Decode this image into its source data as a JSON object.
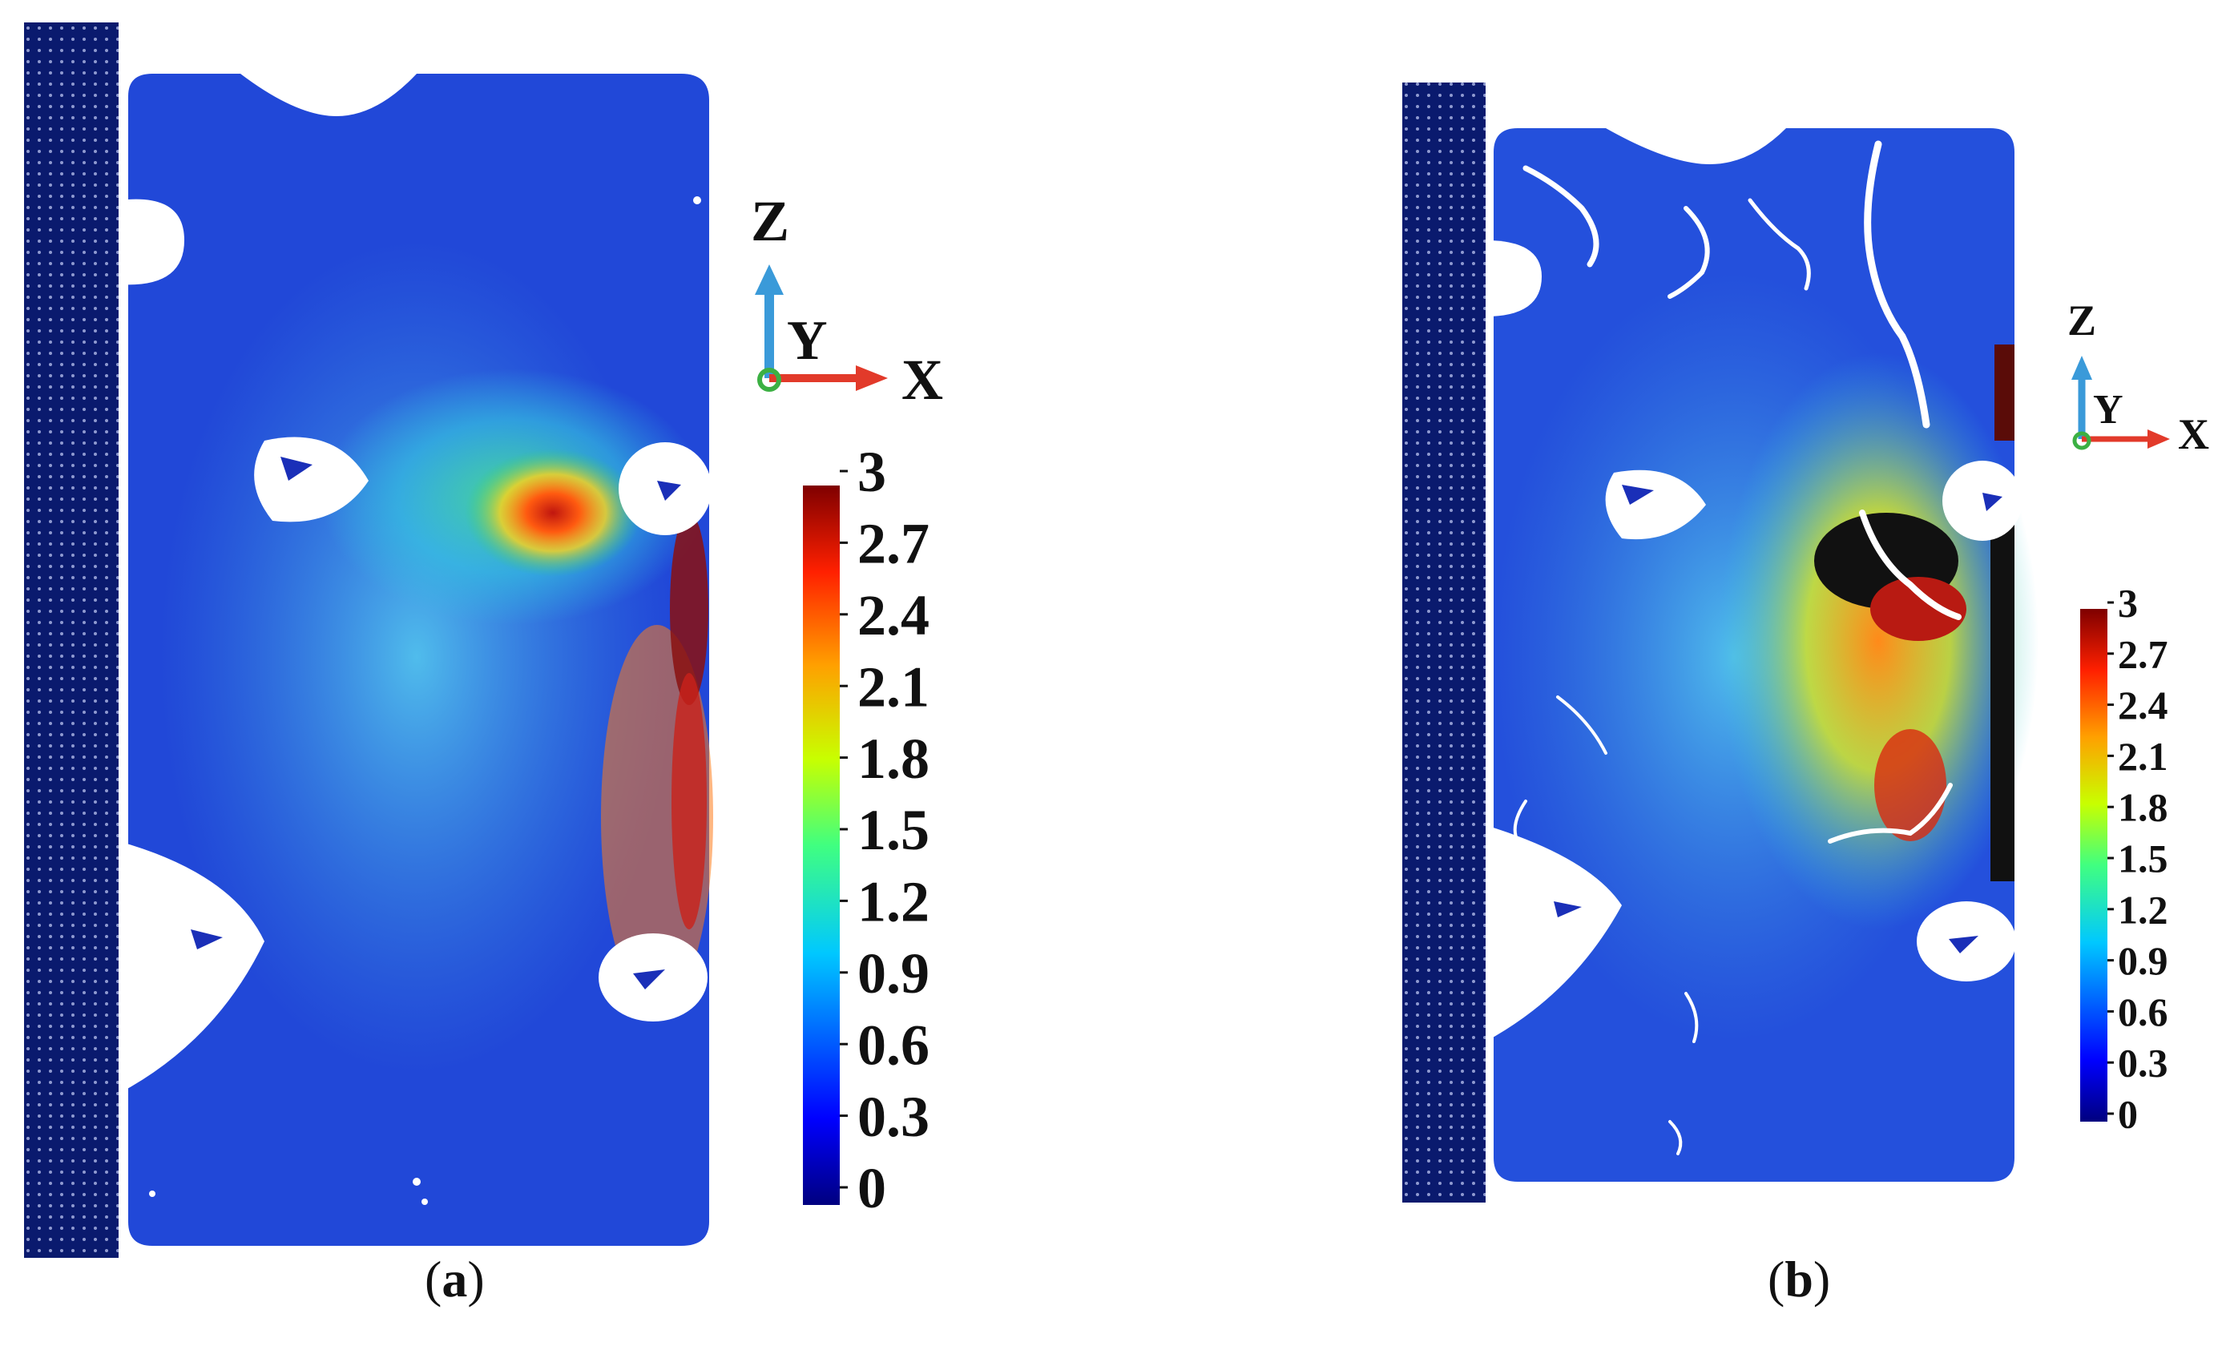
{
  "panels": [
    {
      "id": "a",
      "label_open": "(",
      "label_letter": "a",
      "label_close": ")",
      "axes": {
        "z": "Z",
        "y": "Y",
        "x": "X"
      },
      "colorbar": {
        "min": 0,
        "max": 3,
        "ticks": [
          "3",
          "2.7",
          "2.4",
          "2.1",
          "1.8",
          "1.5",
          "1.2",
          "0.9",
          "0.6",
          "0.3",
          "0"
        ]
      }
    },
    {
      "id": "b",
      "label_open": "(",
      "label_letter": "b",
      "label_close": ")",
      "axes": {
        "z": "Z",
        "y": "Y",
        "x": "X"
      },
      "colorbar": {
        "min": 0,
        "max": 3,
        "ticks": [
          "3",
          "2.7",
          "2.4",
          "2.1",
          "1.8",
          "1.5",
          "1.2",
          "0.9",
          "0.6",
          "0.3",
          "0"
        ]
      }
    }
  ],
  "colors": {
    "wall": "#0a1a6e",
    "field_low": "#1f3fd6",
    "field_mid": "#3fb0e8",
    "field_high": "#ff7a1a",
    "axis_z": "#3a9ad9",
    "axis_x": "#e23a2a",
    "axis_origin": "#3cb043"
  }
}
